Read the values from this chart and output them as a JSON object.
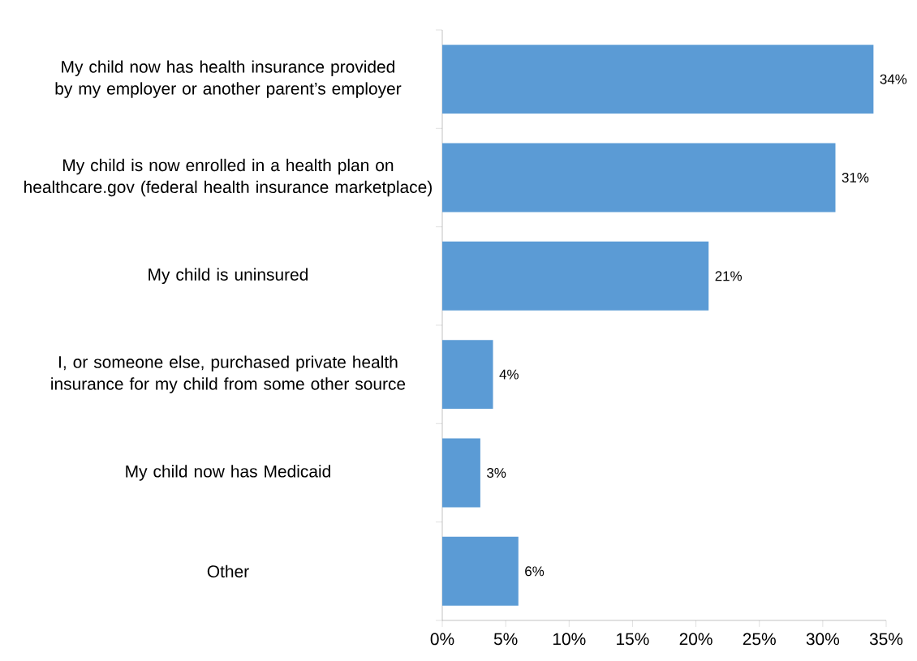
{
  "chart_data": {
    "type": "bar",
    "orientation": "horizontal",
    "categories": [
      "My child now has health insurance provided by my employer or another parent’s employer",
      "My child is now enrolled in a health plan on healthcare.gov (federal health insurance marketplace)",
      "My child is uninsured",
      "I, or someone else, purchased private health insurance for my child from some other source",
      "My child now has Medicaid",
      "Other"
    ],
    "values": [
      34,
      31,
      21,
      4,
      3,
      6
    ],
    "value_labels": [
      "34%",
      "31%",
      "21%",
      "4%",
      "3%",
      "6%"
    ],
    "color": "#5b9bd5",
    "xlim": [
      0,
      35
    ],
    "xticks": [
      {
        "value": 0,
        "label": "0%"
      },
      {
        "value": 5,
        "label": "5%"
      },
      {
        "value": 10,
        "label": "10%"
      },
      {
        "value": 15,
        "label": "15%"
      },
      {
        "value": 20,
        "label": "20%"
      },
      {
        "value": 25,
        "label": "25%"
      },
      {
        "value": 30,
        "label": "30%"
      },
      {
        "value": 35,
        "label": "35%"
      }
    ]
  }
}
